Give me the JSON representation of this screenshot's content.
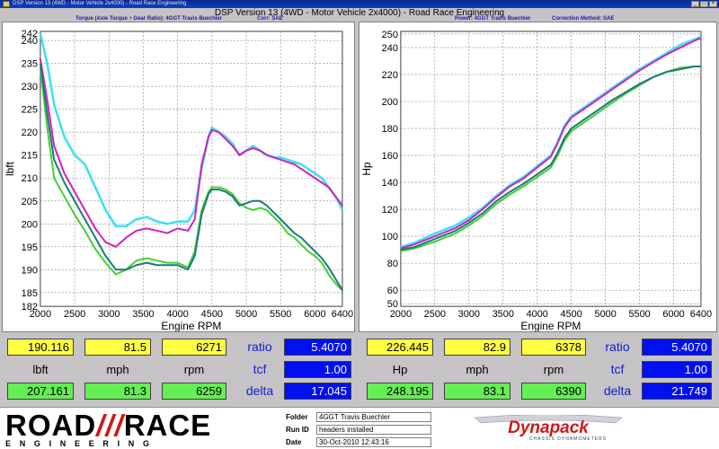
{
  "window": {
    "title": "DSP Version 13 (4WD - Motor Vehicle 2x4000) - Road Race Engineering"
  },
  "main_title": "DSP Version 13 (4WD - Motor Vehicle 2x4000) - Road Race Engineering",
  "left_header": {
    "torque": "Torque (Axle Torque ÷ Gear Ratio): 4GGT Travis Buechler",
    "corr": "Corr: SAE"
  },
  "right_header": {
    "power": "Power: 4GGT Travis Buechler",
    "correction": "Correction Method: SAE"
  },
  "colors": {
    "cyan": "#40e0f0",
    "magenta": "#d020c0",
    "green": "#44d030",
    "teal": "#1a7a7a"
  },
  "chart_data": [
    {
      "type": "line",
      "xlabel": "Engine RPM",
      "ylabel": "lbft",
      "xlim": [
        2000,
        6400
      ],
      "ylim": [
        182,
        242
      ],
      "xticks": [
        "2000",
        "2500",
        "3000",
        "3500",
        "4000",
        "4500",
        "5000",
        "5500",
        "6000",
        "6400"
      ],
      "yticks": [
        "182",
        "185",
        "190",
        "195",
        "200",
        "205",
        "210",
        "215",
        "220",
        "225",
        "230",
        "235",
        "240"
      ],
      "ytop_label": "242",
      "grid": true,
      "series": [
        {
          "color": "cyan",
          "x": [
            2000,
            2100,
            2200,
            2350,
            2500,
            2650,
            2800,
            2950,
            3100,
            3250,
            3400,
            3550,
            3700,
            3850,
            4000,
            4150,
            4250,
            4350,
            4450,
            4500,
            4600,
            4700,
            4800,
            4900,
            5000,
            5100,
            5200,
            5300,
            5400,
            5500,
            5600,
            5700,
            5800,
            5900,
            6000,
            6100,
            6200,
            6300,
            6400
          ],
          "y": [
            241.5,
            235,
            226,
            219,
            215,
            213,
            208,
            203,
            199.5,
            199.5,
            201,
            201.5,
            200.5,
            200,
            200.5,
            200.5,
            203,
            212,
            219,
            221,
            220,
            219,
            217.5,
            215,
            216,
            217,
            216,
            215,
            214.5,
            214.5,
            214,
            213.5,
            213,
            212,
            211,
            210,
            208,
            206,
            203
          ]
        },
        {
          "color": "magenta",
          "x": [
            2000,
            2100,
            2200,
            2350,
            2500,
            2650,
            2800,
            2950,
            3100,
            3250,
            3400,
            3550,
            3700,
            3850,
            4000,
            4150,
            4250,
            4350,
            4450,
            4500,
            4600,
            4700,
            4800,
            4900,
            5000,
            5100,
            5200,
            5300,
            5400,
            5500,
            5600,
            5700,
            5800,
            5900,
            6000,
            6100,
            6200,
            6300,
            6400
          ],
          "y": [
            236,
            227,
            217,
            211,
            207,
            203,
            199,
            196,
            195,
            197,
            198.5,
            199,
            198.5,
            198,
            199,
            198.5,
            201,
            213,
            219,
            220.5,
            220,
            218.5,
            217,
            215,
            216,
            216.5,
            216,
            215,
            214.5,
            214,
            213.5,
            213,
            212,
            211,
            210,
            209,
            208,
            206,
            204
          ]
        },
        {
          "color": "green",
          "x": [
            2000,
            2100,
            2200,
            2350,
            2500,
            2650,
            2800,
            2950,
            3100,
            3250,
            3400,
            3550,
            3700,
            3850,
            4000,
            4150,
            4250,
            4350,
            4450,
            4500,
            4600,
            4700,
            4800,
            4900,
            5000,
            5100,
            5200,
            5300,
            5400,
            5500,
            5600,
            5700,
            5800,
            5900,
            6000,
            6100,
            6200,
            6300,
            6400
          ],
          "y": [
            234,
            221,
            210,
            206,
            202,
            198.5,
            194.5,
            191.5,
            189,
            190,
            192,
            192.5,
            192,
            191.5,
            191.5,
            190.5,
            194,
            203,
            207,
            208,
            208,
            207.5,
            206.5,
            204.5,
            203.5,
            203,
            203.5,
            203,
            201.5,
            200,
            198,
            197,
            195.5,
            194,
            193,
            191.5,
            189,
            187,
            185.5
          ]
        },
        {
          "color": "teal",
          "x": [
            2000,
            2100,
            2200,
            2350,
            2500,
            2650,
            2800,
            2950,
            3100,
            3250,
            3400,
            3550,
            3700,
            3850,
            4000,
            4150,
            4250,
            4350,
            4450,
            4500,
            4600,
            4700,
            4800,
            4900,
            5000,
            5100,
            5200,
            5300,
            5400,
            5500,
            5600,
            5700,
            5800,
            5900,
            6000,
            6100,
            6200,
            6300,
            6400
          ],
          "y": [
            235,
            224,
            214,
            209,
            205,
            201,
            197,
            193,
            190,
            190,
            191,
            191.5,
            191,
            191,
            191,
            190,
            193,
            202,
            206.5,
            207.5,
            207.5,
            207,
            206,
            204,
            204.5,
            205,
            205,
            204,
            202.5,
            201,
            199.5,
            198,
            197,
            195.5,
            194,
            192.5,
            190.5,
            188,
            185.5
          ]
        }
      ]
    },
    {
      "type": "line",
      "xlabel": "Engine RPM",
      "ylabel": "Hp",
      "xlim": [
        2000,
        6400
      ],
      "ylim": [
        48,
        252
      ],
      "xticks": [
        "2000",
        "2500",
        "3000",
        "3500",
        "4000",
        "4500",
        "5000",
        "5500",
        "6000",
        "6400"
      ],
      "yticks": [
        "50",
        "60",
        "80",
        "100",
        "120",
        "140",
        "160",
        "180",
        "200",
        "220",
        "240",
        "250"
      ],
      "grid": true,
      "series": [
        {
          "color": "cyan",
          "x": [
            2000,
            2200,
            2500,
            2800,
            3000,
            3200,
            3400,
            3600,
            3800,
            4000,
            4200,
            4300,
            4400,
            4500,
            4700,
            4900,
            5100,
            5300,
            5500,
            5700,
            5900,
            6100,
            6300,
            6400
          ],
          "y": [
            92,
            95,
            102,
            108,
            114,
            121,
            130,
            138,
            144,
            152,
            160,
            170,
            182,
            189,
            196,
            203,
            210,
            217,
            224,
            230,
            236,
            242,
            246,
            248
          ]
        },
        {
          "color": "magenta",
          "x": [
            2000,
            2200,
            2500,
            2800,
            3000,
            3200,
            3400,
            3600,
            3800,
            4000,
            4200,
            4300,
            4400,
            4500,
            4700,
            4900,
            5100,
            5300,
            5500,
            5700,
            5900,
            6100,
            6300,
            6400
          ],
          "y": [
            91,
            94,
            100,
            106,
            112,
            120,
            129,
            137,
            143,
            151,
            159,
            169,
            181,
            188,
            195,
            202,
            209,
            216,
            223,
            229,
            235,
            240,
            245,
            247
          ]
        },
        {
          "color": "green",
          "x": [
            2000,
            2200,
            2500,
            2800,
            3000,
            3200,
            3400,
            3600,
            3800,
            4000,
            4200,
            4300,
            4400,
            4500,
            4700,
            4900,
            5100,
            5300,
            5500,
            5700,
            5900,
            6100,
            6300,
            6400
          ],
          "y": [
            89,
            91,
            96,
            102,
            108,
            115,
            124,
            131,
            137,
            144,
            151,
            160,
            171,
            178,
            185,
            192,
            199,
            206,
            212,
            218,
            222,
            225,
            226,
            226
          ]
        },
        {
          "color": "teal",
          "x": [
            2000,
            2200,
            2500,
            2800,
            3000,
            3200,
            3400,
            3600,
            3800,
            4000,
            4200,
            4300,
            4400,
            4500,
            4700,
            4900,
            5100,
            5300,
            5500,
            5700,
            5900,
            6100,
            6300,
            6400
          ],
          "y": [
            90,
            92,
            98,
            104,
            110,
            117,
            126,
            133,
            139,
            146,
            153,
            162,
            173,
            180,
            187,
            194,
            201,
            207,
            213,
            218,
            222,
            224,
            226,
            226
          ]
        }
      ]
    }
  ],
  "readouts": {
    "left": {
      "row1": [
        "190.116",
        "81.5",
        "6271"
      ],
      "units": [
        "lbft",
        "mph",
        "rpm"
      ],
      "row2": [
        "207.161",
        "81.3",
        "6259"
      ],
      "ratio_label": "ratio",
      "ratio": "5.4070",
      "tcf_label": "tcf",
      "tcf": "1.00",
      "delta_label": "delta",
      "delta": "17.045"
    },
    "right": {
      "row1": [
        "226.445",
        "82.9",
        "6378"
      ],
      "units": [
        "Hp",
        "mph",
        "rpm"
      ],
      "row2": [
        "248.195",
        "83.1",
        "6390"
      ],
      "ratio_label": "ratio",
      "ratio": "5.4070",
      "tcf_label": "tcf",
      "tcf": "1.00",
      "delta_label": "delta",
      "delta": "21.749"
    }
  },
  "footer": {
    "logo_road": "ROAD",
    "logo_race": "RACE",
    "logo_sub": "ENGINEERING",
    "folder_label": "Folder",
    "folder": "4GGT Travis Buechler",
    "runid_label": "Run ID",
    "runid": "headers installed",
    "date_label": "Date",
    "date": "30-Oct-2010 12:43:16",
    "dyna_logo": "Dynapack",
    "dyna_sub": "CHASSIS DYNAMOMETERS"
  }
}
